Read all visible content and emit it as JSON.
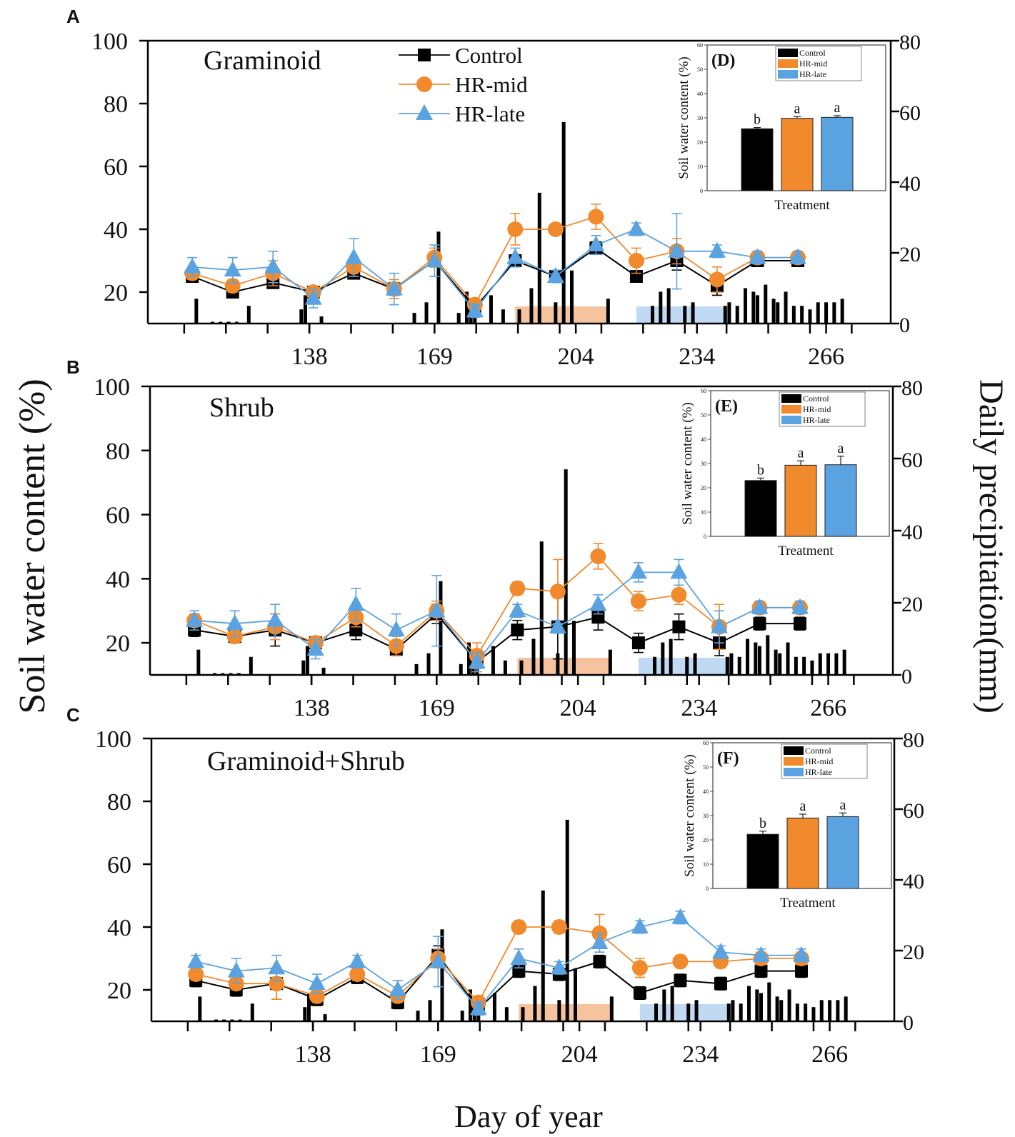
{
  "colors": {
    "control": "#000000",
    "hr_mid": "#f08a2c",
    "hr_late": "#5ba3e0",
    "hr_mid_band": "#f6c09a",
    "hr_late_band": "#b6d4f2"
  },
  "figure": {
    "y_left_label": "Soil water content (%)",
    "y_right_label": "Daily precipitation(mm)",
    "x_label": "Day of year",
    "legend": [
      "Control",
      "HR-mid",
      "HR-late"
    ]
  },
  "chart_data": [
    {
      "type": "line",
      "panel": "A",
      "title": "Graminoid",
      "xlim": [
        98,
        282
      ],
      "ylim": [
        10,
        100
      ],
      "y2lim": [
        0,
        80
      ],
      "x_ticks": [
        138,
        169,
        204,
        234,
        266
      ],
      "y_ticks": [
        20,
        40,
        60,
        80,
        100
      ],
      "y2_ticks": [
        0,
        20,
        40,
        60,
        80
      ],
      "x": [
        109,
        119,
        129,
        139,
        149,
        159,
        169,
        179,
        189,
        199,
        209,
        219,
        229,
        239,
        249,
        259
      ],
      "series": [
        {
          "name": "Control",
          "values": [
            25,
            20,
            23,
            20,
            26,
            21,
            30,
            15,
            30,
            25,
            34,
            25,
            30,
            22,
            30,
            30
          ],
          "errors": [
            1.5,
            1.5,
            1.5,
            1.5,
            1.5,
            2,
            2,
            1.5,
            1.5,
            1.5,
            2,
            1.5,
            3,
            3,
            1.5,
            1.5
          ]
        },
        {
          "name": "HR-mid",
          "values": [
            26,
            22,
            26,
            20,
            28,
            21,
            31,
            16,
            40,
            40,
            44,
            30,
            33,
            24,
            31,
            31
          ],
          "errors": [
            2,
            2,
            4,
            1.5,
            3,
            3,
            3,
            2,
            5,
            1.5,
            4,
            4,
            4,
            4,
            2,
            2
          ]
        },
        {
          "name": "HR-late",
          "values": [
            28,
            27,
            28,
            18,
            31,
            21,
            30,
            14,
            31,
            25,
            35,
            40,
            33,
            33,
            31,
            31
          ],
          "errors": [
            3,
            4,
            5,
            3,
            6,
            5,
            5,
            2,
            3,
            2,
            3,
            2,
            12,
            2,
            2,
            2
          ]
        }
      ],
      "precip_days": [
        110,
        114,
        116,
        118,
        120,
        123,
        136,
        137,
        141,
        164,
        167,
        170,
        175,
        177,
        178,
        179,
        183,
        186,
        190,
        193,
        195,
        199,
        201,
        203,
        212,
        223,
        225,
        227,
        231,
        233,
        241,
        242,
        244,
        246,
        248,
        249,
        251,
        253,
        254,
        256,
        258,
        260,
        262,
        264,
        266,
        268,
        270
      ],
      "precip_mm": [
        7,
        0.5,
        0.5,
        0.5,
        0.5,
        5,
        4,
        8,
        2,
        3,
        6,
        26,
        3,
        9,
        7,
        3,
        8,
        4,
        4,
        10,
        37,
        6,
        57,
        15,
        7,
        5,
        9,
        10,
        5,
        6,
        5,
        6,
        5,
        10,
        9,
        8,
        11,
        7,
        6,
        9,
        5,
        5,
        4,
        6,
        6,
        6,
        7
      ],
      "hr_mid_period": [
        189,
        212
      ],
      "hr_late_period": [
        219,
        242
      ],
      "inset": {
        "label": "(D)",
        "ylabel": "Soil water content (%)",
        "xlabel": "Treatment",
        "ylim": [
          0,
          60
        ],
        "y_ticks": [
          0,
          10,
          20,
          30,
          40,
          50,
          60
        ],
        "categories": [
          "Control",
          "HR-mid",
          "HR-late"
        ],
        "values": [
          25.5,
          29.8,
          30.2
        ],
        "errors": [
          0.5,
          0.7,
          0.7
        ],
        "letters": [
          "b",
          "a",
          "a"
        ]
      }
    },
    {
      "type": "line",
      "panel": "B",
      "title": "Shrub",
      "xlim": [
        98,
        282
      ],
      "ylim": [
        10,
        100
      ],
      "y2lim": [
        0,
        80
      ],
      "x_ticks": [
        138,
        169,
        204,
        234,
        266
      ],
      "y_ticks": [
        20,
        40,
        60,
        80,
        100
      ],
      "y2_ticks": [
        0,
        20,
        40,
        60,
        80
      ],
      "x": [
        109,
        119,
        129,
        139,
        149,
        159,
        169,
        179,
        189,
        199,
        209,
        219,
        229,
        239,
        249,
        259
      ],
      "series": [
        {
          "name": "Control",
          "values": [
            24,
            22,
            24,
            20,
            24,
            18,
            29,
            14,
            24,
            25,
            28,
            20,
            25,
            20,
            26,
            26
          ],
          "errors": [
            2,
            2,
            5,
            2,
            3,
            2,
            3,
            2,
            3,
            10,
            4,
            3,
            4,
            4,
            2,
            2
          ]
        },
        {
          "name": "HR-mid",
          "values": [
            27,
            22,
            25,
            20,
            28,
            19,
            30,
            16,
            37,
            36,
            47,
            33,
            35,
            25,
            31,
            31
          ],
          "errors": [
            2,
            2,
            4,
            2,
            3,
            3,
            3,
            4,
            2,
            10,
            4,
            3,
            3,
            7,
            2,
            2
          ]
        },
        {
          "name": "HR-late",
          "values": [
            27,
            26,
            27,
            18,
            32,
            24,
            30,
            14,
            30,
            25,
            32,
            42,
            42,
            25,
            31,
            31
          ],
          "errors": [
            3,
            4,
            5,
            3,
            5,
            5,
            11,
            3,
            2,
            2,
            3,
            3,
            4,
            5,
            2,
            2
          ]
        }
      ],
      "precip_days": [
        110,
        114,
        116,
        118,
        120,
        123,
        136,
        137,
        141,
        164,
        167,
        170,
        175,
        177,
        178,
        179,
        183,
        186,
        190,
        193,
        195,
        199,
        201,
        203,
        212,
        223,
        225,
        227,
        231,
        233,
        241,
        242,
        244,
        246,
        248,
        249,
        251,
        253,
        254,
        256,
        258,
        260,
        262,
        264,
        266,
        268,
        270
      ],
      "precip_mm": [
        7,
        0.5,
        0.5,
        0.5,
        0.5,
        5,
        4,
        8,
        2,
        3,
        6,
        26,
        3,
        9,
        7,
        3,
        8,
        4,
        4,
        10,
        37,
        6,
        57,
        15,
        7,
        5,
        9,
        10,
        5,
        6,
        5,
        6,
        5,
        10,
        9,
        8,
        11,
        7,
        6,
        9,
        5,
        5,
        4,
        6,
        6,
        6,
        7
      ],
      "hr_mid_period": [
        189,
        212
      ],
      "hr_late_period": [
        219,
        242
      ],
      "inset": {
        "label": "(E)",
        "ylabel": "Soil water content (%)",
        "xlabel": "Treatment",
        "ylim": [
          0,
          60
        ],
        "y_ticks": [
          0,
          10,
          20,
          30,
          40,
          50,
          60
        ],
        "categories": [
          "Control",
          "HR-mid",
          "HR-late"
        ],
        "values": [
          23,
          29.3,
          29.5
        ],
        "errors": [
          1,
          1.8,
          3.5
        ],
        "letters": [
          "b",
          "a",
          "a"
        ]
      }
    },
    {
      "type": "line",
      "panel": "C",
      "title": "Graminoid+Shrub",
      "xlim": [
        98,
        282
      ],
      "ylim": [
        10,
        100
      ],
      "y2lim": [
        0,
        80
      ],
      "x_ticks": [
        138,
        169,
        204,
        234,
        266
      ],
      "y_ticks": [
        20,
        40,
        60,
        80,
        100
      ],
      "y2_ticks": [
        0,
        20,
        40,
        60,
        80
      ],
      "x": [
        109,
        119,
        129,
        139,
        149,
        159,
        169,
        179,
        189,
        199,
        209,
        219,
        229,
        239,
        249,
        259
      ],
      "series": [
        {
          "name": "Control",
          "values": [
            23,
            20,
            22,
            17,
            24,
            16,
            31,
            14,
            26,
            25,
            29,
            19,
            23,
            22,
            26,
            26
          ],
          "errors": [
            2,
            2,
            5,
            2,
            2,
            2,
            3,
            2,
            2,
            2,
            2,
            2,
            2,
            2,
            2,
            2
          ]
        },
        {
          "name": "HR-mid",
          "values": [
            25,
            22,
            22,
            18,
            25,
            18,
            30,
            16,
            40,
            40,
            38,
            27,
            29,
            29,
            30,
            30
          ],
          "errors": [
            2,
            2,
            5,
            2,
            2,
            2,
            3,
            2,
            2,
            2,
            6,
            3,
            2,
            2,
            2,
            2
          ]
        },
        {
          "name": "HR-late",
          "values": [
            29,
            26,
            27,
            22,
            29,
            20,
            29,
            14,
            30,
            27,
            35,
            40,
            43,
            32,
            31,
            31
          ],
          "errors": [
            2,
            4,
            4,
            3,
            2,
            3,
            8,
            2,
            3,
            2,
            3,
            2,
            2,
            2,
            2,
            2
          ]
        }
      ],
      "precip_days": [
        110,
        114,
        116,
        118,
        120,
        123,
        136,
        137,
        141,
        164,
        167,
        170,
        175,
        177,
        178,
        179,
        183,
        186,
        190,
        193,
        195,
        199,
        201,
        203,
        212,
        223,
        225,
        227,
        231,
        233,
        241,
        242,
        244,
        246,
        248,
        249,
        251,
        253,
        254,
        256,
        258,
        260,
        262,
        264,
        266,
        268,
        270
      ],
      "precip_mm": [
        7,
        0.5,
        0.5,
        0.5,
        0.5,
        5,
        4,
        8,
        2,
        3,
        6,
        26,
        3,
        9,
        7,
        3,
        8,
        4,
        4,
        10,
        37,
        6,
        57,
        15,
        7,
        5,
        9,
        10,
        5,
        6,
        5,
        6,
        5,
        10,
        9,
        8,
        11,
        7,
        6,
        9,
        5,
        5,
        4,
        6,
        6,
        6,
        7
      ],
      "hr_mid_period": [
        189,
        212
      ],
      "hr_late_period": [
        219,
        242
      ],
      "inset": {
        "label": "(F)",
        "ylabel": "Soil water content (%)",
        "xlabel": "Treatment",
        "ylim": [
          0,
          60
        ],
        "y_ticks": [
          0,
          10,
          20,
          30,
          40,
          50,
          60
        ],
        "categories": [
          "Control",
          "HR-mid",
          "HR-late"
        ],
        "values": [
          22.3,
          29,
          29.6
        ],
        "errors": [
          1.3,
          1.6,
          1.5
        ],
        "letters": [
          "b",
          "a",
          "a"
        ]
      }
    }
  ]
}
